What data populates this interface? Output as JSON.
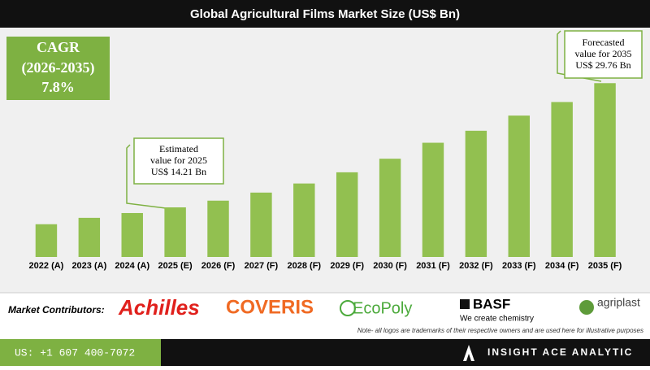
{
  "chart_data": {
    "type": "bar",
    "title": "Global Agricultural Films Market Size (US$ Bn)",
    "categories": [
      "2022 (A)",
      "2023 (A)",
      "2024 (A)",
      "2025 (E)",
      "2026 (F)",
      "2027 (F)",
      "2028 (F)",
      "2029 (F)",
      "2030 (F)",
      "2031 (F)",
      "2032 (F)",
      "2033 (F)",
      "2034 (F)",
      "2035 (F)"
    ],
    "values": [
      12.1,
      12.9,
      13.5,
      14.21,
      15.05,
      16.06,
      17.2,
      18.6,
      20.3,
      22.3,
      23.8,
      25.7,
      27.4,
      29.76
    ],
    "color": "#92c050",
    "ylim": [
      8,
      30.5
    ],
    "grid": false,
    "cagr_box": [
      "CAGR",
      "(2026-2035)",
      "7.8%"
    ],
    "annotations": [
      {
        "lines": [
          "Estimated",
          "value for 2025",
          "US$ 14.21 Bn"
        ]
      },
      {
        "lines": [
          "Forecasted",
          "value for 2035",
          "US$ 29.76 Bn"
        ]
      }
    ]
  },
  "footer": {
    "contributors_label": "Market Contributors:",
    "logos": [
      "Achilles",
      "COVERIS",
      "EcoPoly",
      "BASF",
      "We create chemistry",
      "agriplast"
    ],
    "note": "Note- all logos are trademarks of their respective owners and are used here for illustrative purposes",
    "phone": "US: +1 607 400-7072",
    "brand": "INSIGHT ACE ANALYTIC"
  }
}
